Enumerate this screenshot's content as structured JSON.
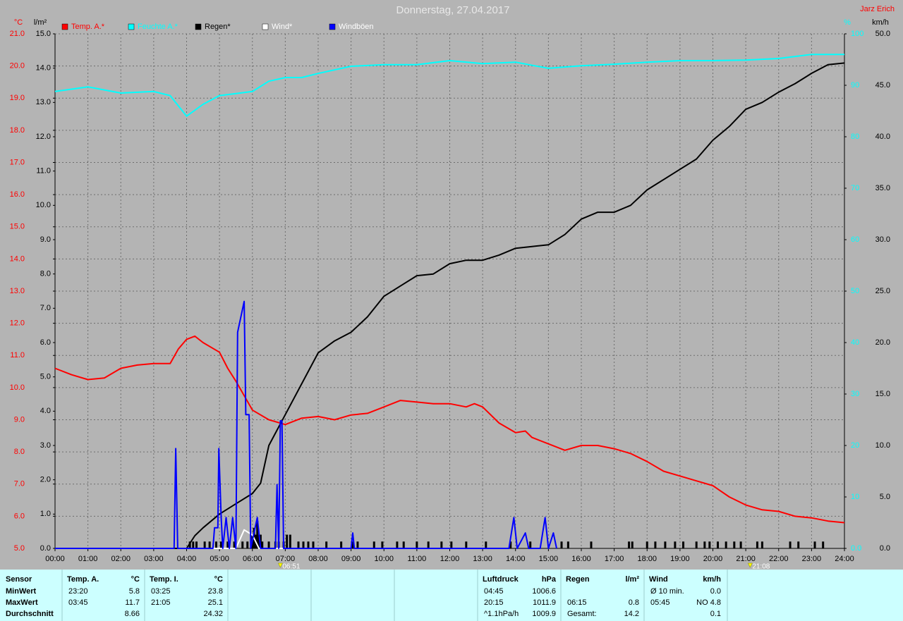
{
  "chart_data": {
    "type": "line",
    "title": "Donnerstag, 27.04.2017",
    "subtitle": "Jarz Erich",
    "grid": true,
    "xlim": [
      0,
      24
    ],
    "xticks": [
      {
        "value": 0,
        "label": "00:00"
      },
      {
        "value": 1,
        "label": "01:00"
      },
      {
        "value": 2,
        "label": "02:00"
      },
      {
        "value": 3,
        "label": "03:00"
      },
      {
        "value": 4,
        "label": "04:00"
      },
      {
        "value": 5,
        "label": "05:00"
      },
      {
        "value": 6,
        "label": "06:00"
      },
      {
        "value": 7,
        "label": "07:00"
      },
      {
        "value": 8,
        "label": "08:00"
      },
      {
        "value": 9,
        "label": "09:00"
      },
      {
        "value": 10,
        "label": "10:00"
      },
      {
        "value": 11,
        "label": "11:00"
      },
      {
        "value": 12,
        "label": "12:00"
      },
      {
        "value": 13,
        "label": "13:00"
      },
      {
        "value": 14,
        "label": "14:00"
      },
      {
        "value": 15,
        "label": "15:00"
      },
      {
        "value": 16,
        "label": "16:00"
      },
      {
        "value": 17,
        "label": "17:00"
      },
      {
        "value": 18,
        "label": "18:00"
      },
      {
        "value": 19,
        "label": "19:00"
      },
      {
        "value": 20,
        "label": "20:00"
      },
      {
        "value": 21,
        "label": "21:00"
      },
      {
        "value": 22,
        "label": "22:00"
      },
      {
        "value": 23,
        "label": "23:00"
      },
      {
        "value": 24,
        "label": "24:00"
      }
    ],
    "axes": [
      {
        "label": "°C",
        "color": "#ff0000",
        "lim": [
          5,
          21
        ],
        "ticks": [
          {
            "value": 21,
            "label": "21.0"
          },
          {
            "value": 20,
            "label": "20.0"
          },
          {
            "value": 19,
            "label": "19.0"
          },
          {
            "value": 18,
            "label": "18.0"
          },
          {
            "value": 17,
            "label": "17.0"
          },
          {
            "value": 16,
            "label": "16.0"
          },
          {
            "value": 15,
            "label": "15.0"
          },
          {
            "value": 14,
            "label": "14.0"
          },
          {
            "value": 13,
            "label": "13.0"
          },
          {
            "value": 12,
            "label": "12.0"
          },
          {
            "value": 11,
            "label": "11.0"
          },
          {
            "value": 10,
            "label": "10.0"
          },
          {
            "value": 9,
            "label": "9.0"
          },
          {
            "value": 8,
            "label": "8.0"
          },
          {
            "value": 7,
            "label": "7.0"
          },
          {
            "value": 6,
            "label": "6.0"
          },
          {
            "value": 5,
            "label": "5.0"
          }
        ]
      },
      {
        "label": "l/m²",
        "color": "#000000",
        "lim": [
          0,
          15
        ],
        "ticks": [
          {
            "value": 15,
            "label": "15.0"
          },
          {
            "value": 14,
            "label": "14.0"
          },
          {
            "value": 13,
            "label": "13.0"
          },
          {
            "value": 12,
            "label": "12.0"
          },
          {
            "value": 11,
            "label": "11.0"
          },
          {
            "value": 10,
            "label": "10.0"
          },
          {
            "value": 9,
            "label": "9.0"
          },
          {
            "value": 8,
            "label": "8.0"
          },
          {
            "value": 7,
            "label": "7.0"
          },
          {
            "value": 6,
            "label": "6.0"
          },
          {
            "value": 5,
            "label": "5.0"
          },
          {
            "value": 4,
            "label": "4.0"
          },
          {
            "value": 3,
            "label": "3.0"
          },
          {
            "value": 2,
            "label": "2.0"
          },
          {
            "value": 1,
            "label": "1.0"
          },
          {
            "value": 0,
            "label": "0.0"
          }
        ]
      },
      {
        "label": "%",
        "color": "#00ffff",
        "lim": [
          0,
          100
        ],
        "ticks": [
          100,
          90,
          80,
          70,
          60,
          50,
          40,
          30,
          20,
          10,
          {
            "value": 0,
            "label": "0.0"
          }
        ]
      },
      {
        "label": "km/h",
        "color": "#000000",
        "lim": [
          0,
          50
        ],
        "ticks": [
          {
            "value": 50,
            "label": "50.0"
          },
          {
            "value": 45,
            "label": "45.0"
          },
          {
            "value": 40,
            "label": "40.0"
          },
          {
            "value": 35,
            "label": "35.0"
          },
          {
            "value": 30,
            "label": "30.0"
          },
          {
            "value": 25,
            "label": "25.0"
          },
          {
            "value": 20,
            "label": "20.0"
          },
          {
            "value": 15,
            "label": "15.0"
          },
          {
            "value": 10,
            "label": "10.0"
          },
          {
            "value": 5,
            "label": "5.0"
          },
          {
            "value": 0,
            "label": "0.0"
          }
        ]
      }
    ],
    "series": [
      {
        "name": "Temp. A.*",
        "color": "#ff0000",
        "axis": 0,
        "x": [
          0,
          0.5,
          1,
          1.5,
          2,
          2.5,
          3,
          3.5,
          3.75,
          4,
          4.25,
          4.5,
          5,
          5.25,
          5.5,
          6,
          6.5,
          7,
          7.5,
          8,
          8.5,
          9,
          9.5,
          10,
          10.5,
          11,
          11.5,
          12,
          12.5,
          12.75,
          13,
          13.5,
          14,
          14.3,
          14.5,
          15,
          15.5,
          16,
          16.5,
          17,
          17.5,
          18,
          18.5,
          19,
          19.5,
          20,
          20.5,
          21,
          21.5,
          22,
          22.5,
          23,
          23.5,
          24
        ],
        "values": [
          10.6,
          10.4,
          10.25,
          10.3,
          10.6,
          10.7,
          10.75,
          10.75,
          11.2,
          11.5,
          11.6,
          11.4,
          11.1,
          10.6,
          10.2,
          9.3,
          9.0,
          8.85,
          9.05,
          9.1,
          9.0,
          9.15,
          9.2,
          9.4,
          9.6,
          9.55,
          9.5,
          9.5,
          9.4,
          9.5,
          9.4,
          8.9,
          8.6,
          8.65,
          8.45,
          8.25,
          8.05,
          8.2,
          8.2,
          8.1,
          7.95,
          7.7,
          7.4,
          7.25,
          7.1,
          6.95,
          6.6,
          6.35,
          6.2,
          6.15,
          6.0,
          5.95,
          5.85,
          5.8
        ]
      },
      {
        "name": "Feuchte A.*",
        "color": "#00ffff",
        "axis": 2,
        "x": [
          0,
          1,
          2,
          3,
          3.5,
          4,
          4.5,
          5,
          5.5,
          6,
          6.5,
          7,
          7.5,
          8,
          9,
          10,
          11,
          12,
          13,
          14,
          15,
          16,
          17,
          18,
          19,
          20,
          21,
          22,
          23,
          24
        ],
        "values": [
          88.8,
          89.7,
          88.5,
          88.8,
          88,
          84,
          86.3,
          88,
          88.4,
          88.8,
          90.8,
          91.5,
          91.5,
          92.3,
          93.7,
          94,
          94,
          94.8,
          94.2,
          94.5,
          93.3,
          93.8,
          94.1,
          94.5,
          94.8,
          94.8,
          94.9,
          95.2,
          96,
          96
        ]
      },
      {
        "name": "Regen*",
        "color": "#000000",
        "axis": 1,
        "x": [
          0,
          4,
          4.25,
          4.5,
          5,
          5.5,
          6,
          6.25,
          6.5,
          7,
          7.5,
          8,
          8.5,
          9,
          9.5,
          10,
          10.5,
          11,
          11.5,
          12,
          12.5,
          13,
          13.5,
          14,
          14.5,
          15,
          15.5,
          16,
          16.5,
          17,
          17.5,
          18,
          18.5,
          19,
          19.5,
          20,
          20.5,
          21,
          21.5,
          22,
          22.5,
          23,
          23.5,
          24
        ],
        "values": [
          0,
          0,
          0.37,
          0.6,
          1.0,
          1.3,
          1.6,
          1.9,
          3.0,
          3.9,
          4.8,
          5.7,
          6.05,
          6.3,
          6.75,
          7.35,
          7.65,
          7.95,
          8.0,
          8.3,
          8.4,
          8.4,
          8.55,
          8.75,
          8.8,
          8.85,
          9.15,
          9.6,
          9.8,
          9.8,
          10.0,
          10.45,
          10.75,
          11.05,
          11.35,
          11.9,
          12.3,
          12.8,
          13.0,
          13.3,
          13.55,
          13.85,
          14.1,
          14.15
        ]
      },
      {
        "name": "Wind*",
        "color": "#ffffff",
        "axis": 3,
        "x": [
          4,
          5.5,
          5.75,
          6.0,
          6.2,
          7
        ],
        "values": [
          0,
          0,
          1.8,
          1.3,
          0,
          0
        ]
      },
      {
        "name": "Windböen",
        "color": "#0000ff",
        "axis": 3,
        "x": [
          0,
          3.62,
          3.67,
          3.73,
          4.8,
          4.85,
          4.95,
          4.98,
          5.05,
          5.1,
          5.2,
          5.3,
          5.4,
          5.5,
          5.55,
          5.75,
          5.8,
          5.9,
          5.95,
          6.15,
          6.25,
          6.7,
          6.75,
          6.8,
          6.85,
          6.9,
          6.95,
          9.0,
          9.05,
          9.1,
          13.8,
          13.95,
          14.05,
          14.3,
          14.4,
          14.75,
          14.9,
          15.0,
          15.15,
          15.25
        ],
        "values": [
          0,
          0,
          9.7,
          0,
          0,
          2,
          2,
          9.7,
          3,
          0,
          3,
          0,
          3,
          0,
          21,
          24,
          13,
          13,
          0,
          3,
          0,
          0,
          6.2,
          0,
          12.4,
          12.4,
          0,
          0,
          1.5,
          0,
          0,
          3,
          0,
          1.5,
          0,
          0,
          3,
          0,
          1.5,
          0
        ]
      }
    ],
    "rain_marks": {
      "axis": 1,
      "x": [
        4.1,
        4.2,
        4.3,
        4.55,
        4.7,
        4.9,
        5.05,
        5.25,
        5.45,
        5.7,
        5.85,
        6.0,
        6.05,
        6.1,
        6.15,
        6.2,
        6.25,
        6.3,
        6.5,
        6.7,
        6.8,
        6.95,
        7.05,
        7.15,
        7.4,
        7.55,
        7.7,
        7.85,
        8.25,
        8.7,
        9.05,
        9.2,
        9.7,
        9.95,
        10.4,
        10.6,
        11.0,
        11.35,
        11.75,
        12.05,
        12.5,
        13.1,
        13.85,
        14.45,
        15.4,
        15.6,
        16.3,
        17.45,
        17.55,
        18.0,
        18.25,
        18.55,
        18.85,
        19.1,
        19.5,
        19.75,
        19.9,
        20.15,
        20.4,
        20.65,
        20.85,
        21.35,
        21.5,
        22.35,
        22.6,
        23.1,
        23.35
      ],
      "values": [
        0.2,
        0.2,
        0.2,
        0.2,
        0.2,
        0.2,
        0.2,
        0.2,
        0.2,
        0.2,
        0.2,
        0.4,
        0.6,
        0.4,
        0.8,
        0.4,
        0.4,
        0.2,
        0.2,
        0.2,
        0.2,
        0.2,
        0.4,
        0.4,
        0.2,
        0.2,
        0.2,
        0.2,
        0.2,
        0.2,
        0.2,
        0.2,
        0.2,
        0.2,
        0.2,
        0.2,
        0.2,
        0.2,
        0.2,
        0.2,
        0.2,
        0.2,
        0.2,
        0.2,
        0.2,
        0.2,
        0.2,
        0.2,
        0.2,
        0.2,
        0.2,
        0.2,
        0.2,
        0.2,
        0.2,
        0.2,
        0.2,
        0.2,
        0.2,
        0.2,
        0.2,
        0.2,
        0.2,
        0.2,
        0.2,
        0.2,
        0.2
      ]
    },
    "annotations": [
      {
        "x": 6.85,
        "label": "06:51"
      },
      {
        "x": 21.133,
        "label": "21:08"
      }
    ]
  },
  "table": {
    "sensor": [
      "Sensor",
      "MinWert",
      "MaxWert",
      "Durchschnitt"
    ],
    "columns": [
      {
        "title": "Temp. A.",
        "unit": "°C",
        "rows": [
          [
            "23:20",
            "5.8"
          ],
          [
            "03:45",
            "11.7"
          ],
          [
            null,
            "8.66"
          ]
        ]
      },
      {
        "title": "Temp. I.",
        "unit": "°C",
        "rows": [
          [
            "03:25",
            "23.8"
          ],
          [
            "21:05",
            "25.1"
          ],
          [
            null,
            "24.32"
          ]
        ]
      },
      {
        "title": "Luftdruck",
        "unit": "hPa",
        "rows": [
          [
            "04:45",
            "1006.6"
          ],
          [
            "20:15",
            "1011.9"
          ],
          [
            "^1.1hPa/h",
            "1009.9"
          ]
        ]
      },
      {
        "title": "Regen",
        "unit": "l/m²",
        "rows": [
          [
            null,
            null
          ],
          [
            "06:15",
            "0.8"
          ],
          [
            "Gesamt:",
            "14.2"
          ]
        ]
      },
      {
        "title": "Wind",
        "unit": "km/h",
        "rows": [
          [
            "Ø 10 min.",
            "0.0"
          ],
          [
            "05:45",
            "NO 4.8"
          ],
          [
            null,
            "0.1"
          ]
        ]
      }
    ]
  }
}
